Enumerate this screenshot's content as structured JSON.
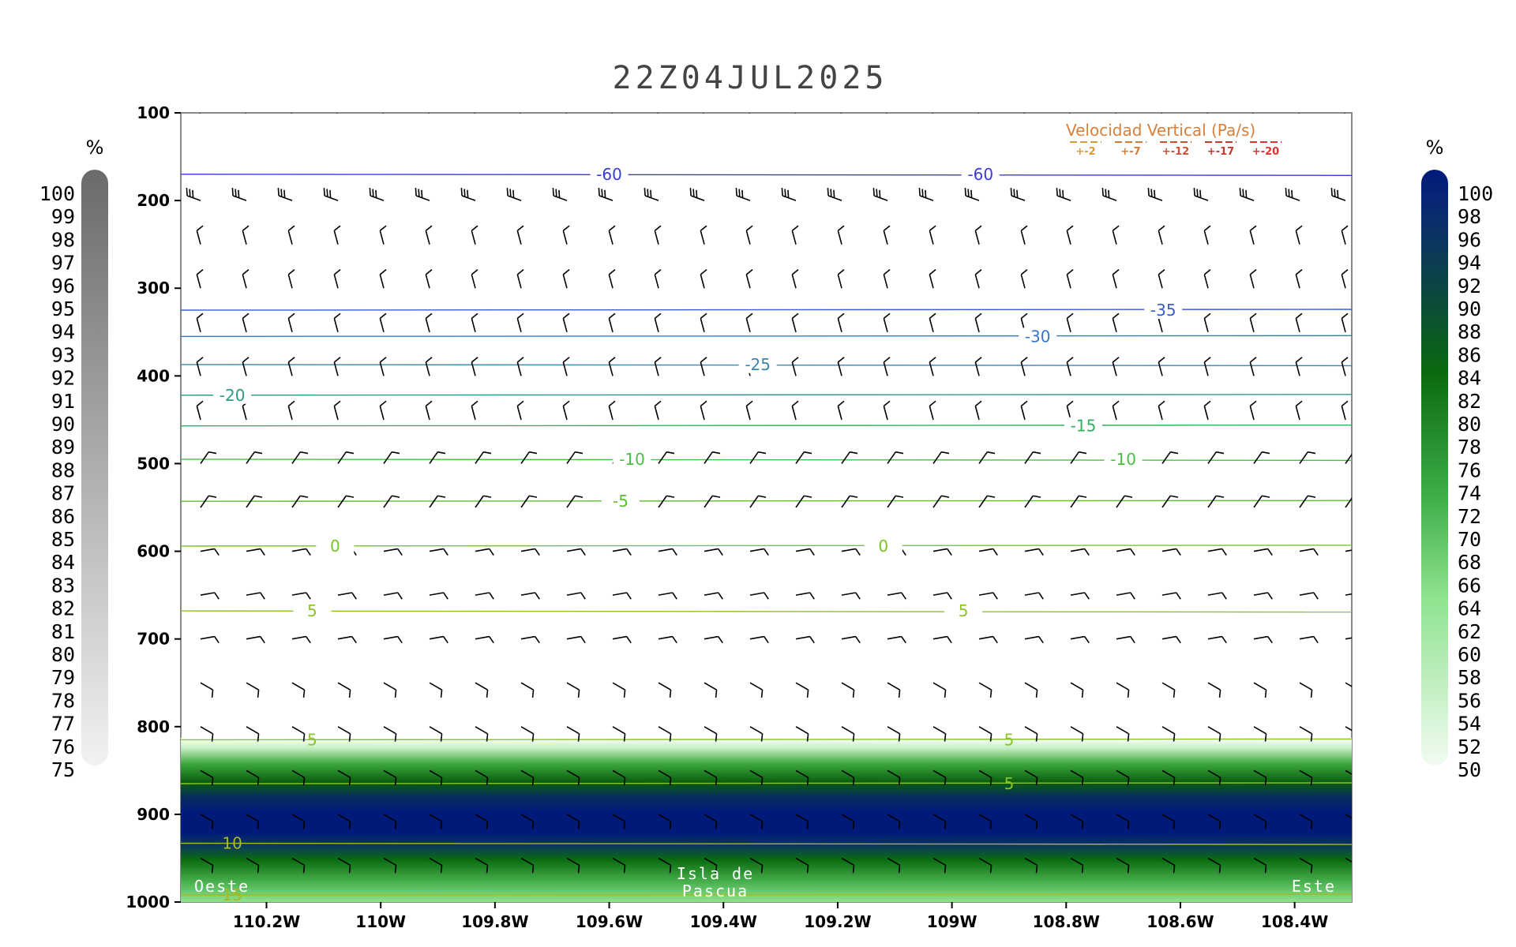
{
  "title": "22Z04JUL2025",
  "chart_data": {
    "type": "heatmap",
    "title": "22Z04JUL2025",
    "x_ticks": [
      "110.2W",
      "110W",
      "109.8W",
      "109.6W",
      "109.4W",
      "109.2W",
      "109W",
      "108.8W",
      "108.6W",
      "108.4W"
    ],
    "x_tick_values": [
      -110.2,
      -110.0,
      -109.8,
      -109.6,
      -109.4,
      -109.2,
      -109.0,
      -108.8,
      -108.6,
      -108.4
    ],
    "xlim": [
      -110.35,
      -108.3
    ],
    "y_ticks": [
      "100",
      "200",
      "300",
      "400",
      "500",
      "600",
      "700",
      "800",
      "900",
      "1000"
    ],
    "y_tick_values": [
      100,
      200,
      300,
      400,
      500,
      600,
      700,
      800,
      900,
      1000
    ],
    "ylim": [
      100,
      1000
    ],
    "fields": [
      "relative humidity (%)",
      "temperature contours",
      "wind barbs"
    ],
    "temperature_contours": [
      {
        "value": -60,
        "level": 170,
        "labels": [
          {
            "text": "-60",
            "x": -109.6
          },
          {
            "text": "-60",
            "x": -108.95
          }
        ]
      },
      {
        "value": -35,
        "level": 325,
        "labels": [
          {
            "text": "-35",
            "x": -108.63
          }
        ]
      },
      {
        "value": -30,
        "level": 355,
        "labels": [
          {
            "text": "-30",
            "x": -108.85
          }
        ]
      },
      {
        "value": -25,
        "level": 387,
        "labels": [
          {
            "text": "-25",
            "x": -109.34
          }
        ]
      },
      {
        "value": -20,
        "level": 422,
        "labels": [
          {
            "text": "-20",
            "x": -110.26
          }
        ]
      },
      {
        "value": -15,
        "level": 457,
        "labels": [
          {
            "text": "-15",
            "x": -108.77
          }
        ]
      },
      {
        "value": -10,
        "level": 495,
        "labels": [
          {
            "text": "-10",
            "x": -109.56
          },
          {
            "text": "-10",
            "x": -108.7
          }
        ]
      },
      {
        "value": -5,
        "level": 543,
        "labels": [
          {
            "text": "-5",
            "x": -109.58
          }
        ]
      },
      {
        "value": 0,
        "level": 594,
        "labels": [
          {
            "text": "0",
            "x": -110.08
          },
          {
            "text": "0",
            "x": -109.12
          }
        ]
      },
      {
        "value": 5,
        "level": 668,
        "labels": [
          {
            "text": "5",
            "x": -110.12
          },
          {
            "text": "5",
            "x": -108.98
          }
        ]
      },
      {
        "value": 5,
        "level": 815,
        "labels": [
          {
            "text": "5",
            "x": -110.12
          },
          {
            "text": "5",
            "x": -108.9
          }
        ]
      },
      {
        "value": 5,
        "level": 865,
        "labels": [
          {
            "text": "5",
            "x": -108.9
          }
        ]
      },
      {
        "value": 10,
        "level": 933,
        "labels": [
          {
            "text": "10",
            "x": -110.26
          }
        ]
      },
      {
        "value": 15,
        "level": 992,
        "labels": [
          {
            "text": "15",
            "x": -110.26
          }
        ]
      }
    ],
    "humidity_layer": {
      "top_hpa": 820,
      "core_top_hpa": 860,
      "core_bottom_hpa": 910,
      "bottom_hpa": 1000,
      "units": "%"
    },
    "wind_levels": [
      100,
      200,
      250,
      300,
      350,
      400,
      450,
      500,
      550,
      600,
      650,
      700,
      750,
      800,
      850,
      900,
      950
    ]
  },
  "legend": {
    "title": "Velocidad Vertical  (Pa/s)",
    "items": [
      "+-2",
      "+-7",
      "+-12",
      "+-17",
      "+-20"
    ],
    "colors": [
      "#d89a3a",
      "#d67a35",
      "#cc5030",
      "#c23a2a",
      "#e03030"
    ]
  },
  "left_colorbar": {
    "unit": "%",
    "labels": [
      "100",
      "99",
      "98",
      "97",
      "96",
      "95",
      "94",
      "93",
      "92",
      "91",
      "90",
      "89",
      "88",
      "87",
      "86",
      "85",
      "84",
      "83",
      "82",
      "81",
      "80",
      "79",
      "78",
      "77",
      "76",
      "75"
    ]
  },
  "right_colorbar": {
    "unit": "%",
    "labels": [
      "100",
      "98",
      "96",
      "94",
      "92",
      "90",
      "88",
      "86",
      "84",
      "82",
      "80",
      "78",
      "76",
      "74",
      "72",
      "70",
      "68",
      "66",
      "64",
      "62",
      "60",
      "58",
      "56",
      "54",
      "52",
      "50"
    ]
  },
  "places": {
    "west": "Oeste",
    "center_line1": "Isla de",
    "center_line2": "Pascua",
    "east": "Este"
  }
}
